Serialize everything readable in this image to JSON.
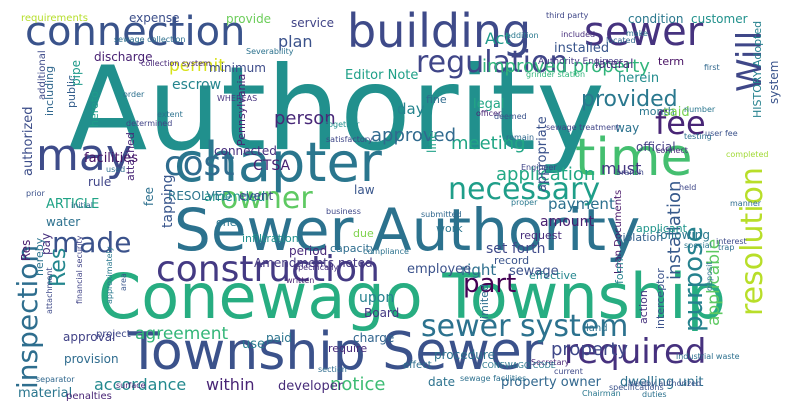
{
  "words": [
    {
      "text": "Authority",
      "color": "#21908d"
    },
    {
      "text": "Conewago Township",
      "color": "#27ad81"
    },
    {
      "text": "Sewer Authority",
      "color": "#2c728e"
    },
    {
      "text": "Township Sewer",
      "color": "#3b528b"
    },
    {
      "text": "chapter",
      "color": "#2a768e"
    },
    {
      "text": "building",
      "color": "#3e4a89"
    },
    {
      "text": "connection",
      "color": "#3a538b"
    },
    {
      "text": "sewer",
      "color": "#46337f"
    },
    {
      "text": "time",
      "color": "#44bf70"
    },
    {
      "text": "may",
      "color": "#3e4c8a"
    },
    {
      "text": "cost",
      "color": "#2f6c8e"
    },
    {
      "text": "construction",
      "color": "#443a83"
    },
    {
      "text": "sewer system",
      "color": "#2c728e"
    },
    {
      "text": "required",
      "color": "#46317e"
    },
    {
      "text": "fee",
      "color": "#482576"
    },
    {
      "text": "Will",
      "color": "#3f4788"
    },
    {
      "text": "resolution",
      "color": "#b8de29"
    },
    {
      "text": "regulation",
      "color": "#404688"
    },
    {
      "text": "owner",
      "color": "#5ec962"
    },
    {
      "text": "necessary",
      "color": "#1f9e89"
    },
    {
      "text": "made",
      "color": "#3b528b"
    },
    {
      "text": "Res",
      "color": "#24878e"
    },
    {
      "text": "inspection",
      "color": "#2e6e8e"
    },
    {
      "text": "purpose",
      "color": "#26828e"
    },
    {
      "text": "part",
      "color": "#440154"
    },
    {
      "text": "provided",
      "color": "#2a788e"
    },
    {
      "text": "improved property",
      "color": "#31b57b"
    },
    {
      "text": "installation",
      "color": "#375a8c"
    },
    {
      "text": "applicable",
      "color": "#5ec962"
    },
    {
      "text": "meeting",
      "color": "#21a685"
    },
    {
      "text": "application",
      "color": "#22a884"
    },
    {
      "text": "approved",
      "color": "#306a8e"
    },
    {
      "text": "person",
      "color": "#482878"
    },
    {
      "text": "agreement",
      "color": "#34b679"
    },
    {
      "text": "property",
      "color": "#3f4889"
    },
    {
      "text": "accordance",
      "color": "#23898e"
    },
    {
      "text": "within",
      "color": "#482475"
    },
    {
      "text": "notice",
      "color": "#3dbc74"
    },
    {
      "text": "payment",
      "color": "#2d708e"
    },
    {
      "text": "must",
      "color": "#453781"
    },
    {
      "text": "amount",
      "color": "#481f70"
    },
    {
      "text": "set forth",
      "color": "#3e4989"
    },
    {
      "text": "right",
      "color": "#2e6f8e"
    },
    {
      "text": "upon",
      "color": "#26818e"
    },
    {
      "text": "plan",
      "color": "#3b528b"
    },
    {
      "text": "permit",
      "color": "#d8e219"
    },
    {
      "text": "escrow",
      "color": "#25858e"
    },
    {
      "text": "Editor Note",
      "color": "#1fa088"
    },
    {
      "text": "installed",
      "color": "#39558c"
    },
    {
      "text": "Act",
      "color": "#1f9a8a"
    },
    {
      "text": "lateral",
      "color": "#472c7a"
    },
    {
      "text": "herein",
      "color": "#228c8d"
    },
    {
      "text": "HISTORY Adopted",
      "color": "#26828e"
    },
    {
      "text": "Authority Engineer",
      "color": "#443b84"
    },
    {
      "text": "system",
      "color": "#3a548c"
    },
    {
      "text": "term",
      "color": "#471063"
    },
    {
      "text": "month",
      "color": "#2a778e"
    },
    {
      "text": "said",
      "color": "#7ad151"
    },
    {
      "text": "way",
      "color": "#2c728e"
    },
    {
      "text": "official",
      "color": "#433e85"
    },
    {
      "text": "legal",
      "color": "#22a785"
    },
    {
      "text": "fine",
      "color": "#2f6b8e"
    },
    {
      "text": "day",
      "color": "#25848e"
    },
    {
      "text": "line",
      "color": "#1fa187"
    },
    {
      "text": "appropriate",
      "color": "#3b528b"
    },
    {
      "text": "connected",
      "color": "#472f7d"
    },
    {
      "text": "CTSA",
      "color": "#482071"
    },
    {
      "text": "facilities",
      "color": "#471365"
    },
    {
      "text": "authorized",
      "color": "#3d4e8a"
    },
    {
      "text": "discharge",
      "color": "#482173"
    },
    {
      "text": "minimum",
      "color": "#3e4c8a"
    },
    {
      "text": "expense",
      "color": "#3c4f8a"
    },
    {
      "text": "provide",
      "color": "#6ccd5a"
    },
    {
      "text": "service",
      "color": "#414487"
    },
    {
      "text": "condition",
      "color": "#2a788e"
    },
    {
      "text": "customer",
      "color": "#21918c"
    },
    {
      "text": "requirements",
      "color": "#b5de2b"
    },
    {
      "text": "including",
      "color": "#31688e"
    },
    {
      "text": "additional",
      "color": "#3e4a89"
    },
    {
      "text": "public",
      "color": "#355f8d"
    },
    {
      "text": "pipe",
      "color": "#1e9b8a"
    },
    {
      "text": "rule",
      "color": "#404588"
    },
    {
      "text": "ARTICLE",
      "color": "#20a386"
    },
    {
      "text": "water",
      "color": "#2d718e"
    },
    {
      "text": "Res",
      "color": "#481b6d"
    },
    {
      "text": "pay",
      "color": "#46307e"
    },
    {
      "text": "hereby",
      "color": "#2b748e"
    },
    {
      "text": "tapping",
      "color": "#39568c"
    },
    {
      "text": "fee",
      "color": "#2d708e"
    },
    {
      "text": "attached",
      "color": "#482677"
    },
    {
      "text": "hereto",
      "color": "#1e9d89"
    },
    {
      "text": "amended",
      "color": "#1f998a"
    },
    {
      "text": "RESOLVED",
      "color": "#2b758e"
    },
    {
      "text": "event",
      "color": "#3f4788"
    },
    {
      "text": "Pennsylvania",
      "color": "#482374"
    },
    {
      "text": "Amendments noted",
      "color": "#453882"
    },
    {
      "text": "law",
      "color": "#39568c"
    },
    {
      "text": "due",
      "color": "#7fd34e"
    },
    {
      "text": "capacity",
      "color": "#2e6d8e"
    },
    {
      "text": "period",
      "color": "#482979"
    },
    {
      "text": "employee",
      "color": "#3b528b"
    },
    {
      "text": "infiltration",
      "color": "#21908d"
    },
    {
      "text": "one",
      "color": "#2a768e"
    },
    {
      "text": "Board",
      "color": "#443983"
    },
    {
      "text": "charge",
      "color": "#32658e"
    },
    {
      "text": "procedure",
      "color": "#2d718e"
    },
    {
      "text": "paid",
      "color": "#2b748e"
    },
    {
      "text": "use",
      "color": "#287c8e"
    },
    {
      "text": "require",
      "color": "#472a7a"
    },
    {
      "text": "effective",
      "color": "#24868e"
    },
    {
      "text": "sewage",
      "color": "#3b528b"
    },
    {
      "text": "land",
      "color": "#2d708e"
    },
    {
      "text": "Loan Documents",
      "color": "#481668"
    },
    {
      "text": "form",
      "color": "#25838e"
    },
    {
      "text": "request",
      "color": "#472d7b"
    },
    {
      "text": "violation",
      "color": "#35608d"
    },
    {
      "text": "following",
      "color": "#2a788e"
    },
    {
      "text": "applicant",
      "color": "#1f958b"
    },
    {
      "text": "record",
      "color": "#3a548c"
    },
    {
      "text": "work",
      "color": "#2b758e"
    },
    {
      "text": "project",
      "color": "#3f4889"
    },
    {
      "text": "provision",
      "color": "#2f6c8e"
    },
    {
      "text": "approval",
      "color": "#414287"
    },
    {
      "text": "material",
      "color": "#2a768e"
    },
    {
      "text": "developer",
      "color": "#472c7a"
    },
    {
      "text": "date",
      "color": "#2c728e"
    },
    {
      "text": "property owner",
      "color": "#31678e"
    },
    {
      "text": "dwelling unit",
      "color": "#2d708e"
    },
    {
      "text": "effect",
      "color": "#2e6f8e"
    },
    {
      "text": "penalties",
      "color": "#482475"
    },
    {
      "text": "action",
      "color": "#46327e"
    },
    {
      "text": "interceptor",
      "color": "#3b528b"
    },
    {
      "text": "limited",
      "color": "#2d708e"
    },
    {
      "text": "third party",
      "color": "#3f4788"
    },
    {
      "text": "included",
      "color": "#472e7c"
    },
    {
      "text": "located",
      "color": "#31688e"
    },
    {
      "text": "sewage treatment",
      "color": "#404588"
    },
    {
      "text": "grinder station",
      "color": "#31b57b"
    },
    {
      "text": "Severability",
      "color": "#2c728e"
    },
    {
      "text": "WHEREAS",
      "color": "#46337f"
    },
    {
      "text": "Chairman",
      "color": "#2a788e"
    },
    {
      "text": "Secretary",
      "color": "#482374"
    },
    {
      "text": "specifications",
      "color": "#3b528b"
    },
    {
      "text": "industrial waste",
      "color": "#2d708e"
    },
    {
      "text": "separator",
      "color": "#31688e"
    },
    {
      "text": "Specifically",
      "color": "#46307e"
    },
    {
      "text": "CONEWAGO CODE",
      "color": "#2a788e"
    },
    {
      "text": "current",
      "color": "#3e4989"
    },
    {
      "text": "duties",
      "color": "#2c728e"
    },
    {
      "text": "surface",
      "color": "#482677"
    },
    {
      "text": "section",
      "color": "#2f6c8e"
    },
    {
      "text": "together",
      "color": "#21908d"
    },
    {
      "text": "satisfactory",
      "color": "#3f4788"
    },
    {
      "text": "order",
      "color": "#2d708e"
    },
    {
      "text": "officer",
      "color": "#482475"
    },
    {
      "text": "deemed",
      "color": "#3b528b"
    },
    {
      "text": "remain",
      "color": "#31688e"
    },
    {
      "text": "Engineer",
      "color": "#404688"
    },
    {
      "text": "proper",
      "color": "#2a788e"
    },
    {
      "text": "compliance",
      "color": "#2c728e"
    },
    {
      "text": "business",
      "color": "#3f4889"
    },
    {
      "text": "written",
      "color": "#481f70"
    },
    {
      "text": "special",
      "color": "#2a768e"
    },
    {
      "text": "interest",
      "color": "#3e4c8a"
    },
    {
      "text": "prior",
      "color": "#3b528b"
    },
    {
      "text": "initial",
      "color": "#31688e"
    },
    {
      "text": "used",
      "color": "#2e6d8e"
    },
    {
      "text": "determined",
      "color": "#414487"
    },
    {
      "text": "extent",
      "color": "#2c728e"
    },
    {
      "text": "area",
      "color": "#39568c"
    },
    {
      "text": "approximately",
      "color": "#2a788e"
    },
    {
      "text": "branch",
      "color": "#3e4989"
    },
    {
      "text": "connect",
      "color": "#472d7b"
    },
    {
      "text": "testing",
      "color": "#2d708e"
    },
    {
      "text": "completed",
      "color": "#a2da37"
    },
    {
      "text": "number",
      "color": "#2a768e"
    },
    {
      "text": "user fee",
      "color": "#3b528b"
    },
    {
      "text": "first",
      "color": "#31688e"
    },
    {
      "text": "trap",
      "color": "#2e6f8e"
    },
    {
      "text": "held",
      "color": "#3f4788"
    },
    {
      "text": "make",
      "color": "#2c728e"
    },
    {
      "text": "collection system",
      "color": "#482878"
    },
    {
      "text": "sewage collection",
      "color": "#2d708e"
    },
    {
      "text": "submitted",
      "color": "#31688e"
    },
    {
      "text": "addition",
      "color": "#2a788e"
    },
    {
      "text": "attachment",
      "color": "#3e4a89"
    },
    {
      "text": "deposit",
      "color": "#2c728e"
    },
    {
      "text": "financial security",
      "color": "#414487"
    },
    {
      "text": "sewage facilities",
      "color": "#2d708e"
    },
    {
      "text": "hereby authorized",
      "color": "#3b528b"
    },
    {
      "text": "manner",
      "color": "#2e6d8e"
    },
    {
      "text": "enter",
      "color": "#482677"
    },
    {
      "text": "intent",
      "color": "#31688e"
    }
  ]
}
